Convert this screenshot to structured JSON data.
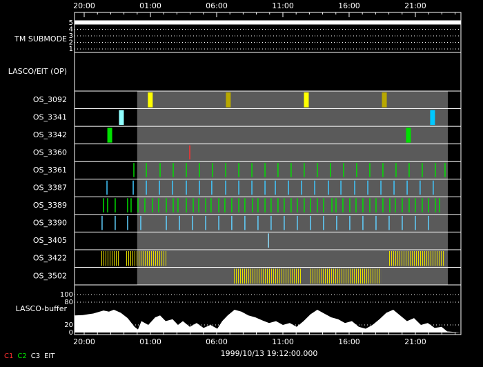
{
  "time_axis": {
    "xlim": [
      19.27,
      48.44
    ],
    "xticks": [
      {
        "value": 20,
        "label": "20:00"
      },
      {
        "value": 25,
        "label": "01:00"
      },
      {
        "value": 30,
        "label": "06:00"
      },
      {
        "value": 35,
        "label": "11:00"
      },
      {
        "value": 40,
        "label": "16:00"
      },
      {
        "value": 45,
        "label": "21:00"
      }
    ],
    "minor_ticks": [
      20,
      21,
      22,
      23,
      24,
      25,
      26,
      27,
      28,
      29,
      30,
      31,
      32,
      33,
      34,
      35,
      36,
      37,
      38,
      39,
      40,
      41,
      42,
      43,
      44,
      45,
      46,
      47,
      48
    ]
  },
  "tm_submode": {
    "label": "TM SUBMODE",
    "yticks": [
      1,
      2,
      3,
      4,
      5
    ],
    "value": 5
  },
  "lasco_eit": {
    "label": "LASCO/EIT (OP)"
  },
  "active_window": [
    24.0,
    47.45
  ],
  "rows": [
    {
      "label": "OS_3092",
      "style": "bar",
      "colors": [
        "#ffff00",
        "#b8a800",
        "#ffff00",
        "#b8a800"
      ],
      "events": [
        24.99,
        30.88,
        36.77,
        42.66
      ]
    },
    {
      "label": "OS_3341",
      "style": "bar",
      "colors": [
        "#90ffff",
        "#00c8ff"
      ],
      "events": [
        22.81,
        46.3
      ]
    },
    {
      "label": "OS_3342",
      "style": "bar",
      "colors": [
        "#00e000",
        "#00e000"
      ],
      "events": [
        21.93,
        44.48
      ]
    },
    {
      "label": "OS_3360",
      "style": "line",
      "color": "#ff3030",
      "events": [
        27.97
      ]
    },
    {
      "label": "OS_3361",
      "style": "line",
      "color": "#00e000",
      "events": [
        23.75,
        24.69,
        25.73,
        26.72,
        27.71,
        28.7,
        29.69,
        30.68,
        31.67,
        32.66,
        33.65,
        34.63,
        35.62,
        36.61,
        37.6,
        38.6,
        39.58,
        40.57,
        41.56,
        42.55,
        43.54,
        44.53,
        45.52,
        46.51,
        47.24
      ]
    },
    {
      "label": "OS_3387",
      "style": "line",
      "color": "#40c8ff",
      "events": [
        21.72,
        23.7,
        24.69,
        25.68,
        26.67,
        27.71,
        28.7,
        29.63,
        30.68,
        31.67,
        32.66,
        33.65,
        34.43,
        35.42,
        36.41,
        37.4,
        38.44,
        39.38,
        40.42,
        41.41,
        42.4,
        43.39,
        44.38,
        45.36,
        46.35
      ]
    },
    {
      "label": "OS_3389",
      "style": "line",
      "color": "#00e000",
      "events": [
        21.46,
        21.77,
        22.34,
        23.28,
        23.54,
        24.06,
        24.58,
        25.16,
        25.62,
        26.2,
        26.72,
        27.08,
        27.71,
        28.23,
        28.65,
        29.17,
        29.58,
        30.16,
        30.62,
        31.14,
        31.67,
        32.13,
        32.71,
        33.12,
        33.65,
        34.11,
        34.63,
        35.1,
        35.62,
        36.09,
        36.61,
        37.08,
        37.6,
        38.07,
        38.7,
        39.01,
        39.53,
        40.05,
        40.52,
        41.04,
        41.56,
        42.03,
        42.55,
        43.07,
        43.49,
        44.01,
        44.53,
        45.0,
        45.52,
        45.99,
        46.51,
        46.82
      ]
    },
    {
      "label": "OS_3390",
      "style": "line",
      "color": "#60d0ff",
      "events": [
        21.35,
        22.34,
        23.28,
        24.27,
        26.2,
        27.19,
        28.18,
        29.17,
        30.16,
        31.14,
        32.13,
        33.12,
        34.11,
        35.1,
        36.09,
        37.08,
        38.07,
        39.06,
        40.05,
        41.04,
        42.03,
        43.02,
        44.01,
        45.0,
        45.99
      ]
    },
    {
      "label": "OS_3405",
      "style": "line",
      "color": "#90e0ff",
      "events": [
        33.91
      ]
    },
    {
      "label": "OS_3422",
      "style": "burst",
      "color": "#e8e000",
      "events": [
        [
          21.2,
          22.6
        ],
        [
          23.18,
          23.9
        ],
        [
          23.96,
          26.2
        ],
        [
          42.92,
          47.24
        ]
      ]
    },
    {
      "label": "OS_3502",
      "style": "burst",
      "color": "#e8e000",
      "events": [
        [
          31.2,
          36.41
        ],
        [
          37.03,
          42.4
        ]
      ]
    }
  ],
  "buffer": {
    "label": "LASCO-buffer",
    "ylim": [
      0,
      100
    ],
    "yticks": [
      0,
      20,
      80,
      100
    ],
    "x": [
      19.27,
      19.9,
      20.68,
      21.46,
      21.87,
      22.24,
      22.76,
      23.28,
      23.8,
      24.06,
      24.32,
      24.84,
      25.36,
      25.73,
      26.15,
      26.67,
      27.08,
      27.45,
      27.97,
      28.49,
      29.01,
      29.53,
      30.05,
      30.42,
      30.83,
      31.35,
      31.87,
      32.4,
      32.92,
      33.44,
      33.96,
      34.48,
      35.0,
      35.52,
      36.04,
      36.56,
      37.08,
      37.6,
      38.12,
      38.65,
      39.17,
      39.69,
      40.21,
      40.73,
      41.25,
      41.77,
      42.29,
      42.81,
      43.33,
      43.85,
      44.37,
      44.9,
      45.42,
      45.94,
      46.46,
      46.98,
      47.4,
      48.44
    ],
    "values": [
      45,
      46,
      50,
      58,
      55,
      60,
      52,
      38,
      15,
      8,
      30,
      20,
      40,
      45,
      30,
      35,
      20,
      30,
      15,
      25,
      12,
      20,
      10,
      30,
      45,
      60,
      55,
      45,
      40,
      32,
      25,
      30,
      20,
      25,
      15,
      30,
      48,
      60,
      50,
      40,
      35,
      25,
      30,
      15,
      10,
      20,
      35,
      52,
      60,
      45,
      30,
      38,
      20,
      25,
      12,
      15,
      3,
      0
    ]
  },
  "timestamp": "1999/10/13 19:12:00.000",
  "legend": [
    {
      "label": "C1",
      "color": "#ff3030"
    },
    {
      "label": "C2",
      "color": "#00e000"
    },
    {
      "label": "C3",
      "color": "#ffffff"
    },
    {
      "label": "EIT",
      "color": "#ffffff"
    }
  ]
}
